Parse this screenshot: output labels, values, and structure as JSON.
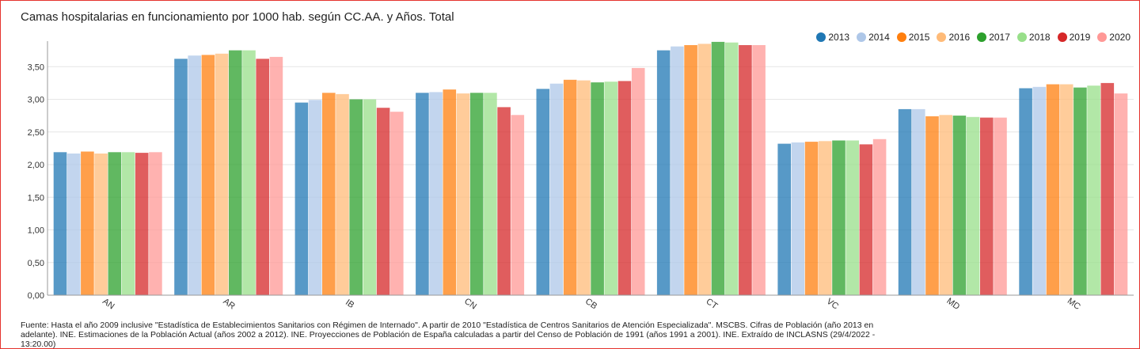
{
  "chart_data": {
    "type": "bar",
    "title": "Camas hospitalarias en funcionamiento por 1000 hab. según CC.AA. y Años. Total",
    "xlabel": "",
    "ylabel": "",
    "ylim": [
      0,
      3.9
    ],
    "yticks": [
      "0,00",
      "0,50",
      "1,00",
      "1,50",
      "2,00",
      "2,50",
      "3,00",
      "3,50"
    ],
    "ytick_values": [
      0,
      0.5,
      1.0,
      1.5,
      2.0,
      2.5,
      3.0,
      3.5
    ],
    "grid": true,
    "legend_position": "top-right",
    "categories": [
      "AN",
      "AR",
      "IB",
      "CN",
      "CB",
      "CT",
      "VC",
      "MD",
      "MC"
    ],
    "series": [
      {
        "name": "2013",
        "color": "#1f77b4",
        "values": [
          2.19,
          3.62,
          2.95,
          3.1,
          3.16,
          3.75,
          2.32,
          2.85,
          3.17
        ]
      },
      {
        "name": "2014",
        "color": "#aec7e8",
        "values": [
          2.17,
          3.67,
          2.99,
          3.11,
          3.24,
          3.81,
          2.34,
          2.85,
          3.19
        ]
      },
      {
        "name": "2015",
        "color": "#ff7f0e",
        "values": [
          2.2,
          3.68,
          3.1,
          3.15,
          3.3,
          3.83,
          2.35,
          2.74,
          3.23
        ]
      },
      {
        "name": "2016",
        "color": "#ffbb78",
        "values": [
          2.17,
          3.7,
          3.08,
          3.09,
          3.29,
          3.85,
          2.36,
          2.76,
          3.23
        ]
      },
      {
        "name": "2017",
        "color": "#2ca02c",
        "values": [
          2.19,
          3.75,
          3.0,
          3.1,
          3.26,
          3.88,
          2.37,
          2.75,
          3.18
        ]
      },
      {
        "name": "2018",
        "color": "#98df8a",
        "values": [
          2.19,
          3.75,
          3.0,
          3.1,
          3.27,
          3.87,
          2.37,
          2.73,
          3.21
        ]
      },
      {
        "name": "2019",
        "color": "#d62728",
        "values": [
          2.18,
          3.62,
          2.87,
          2.88,
          3.28,
          3.83,
          2.31,
          2.72,
          3.25
        ]
      },
      {
        "name": "2020",
        "color": "#ff9896",
        "values": [
          2.19,
          3.65,
          2.81,
          2.76,
          3.48,
          3.83,
          2.39,
          2.72,
          3.09
        ]
      }
    ]
  },
  "source": "Fuente: Hasta el año 2009 inclusive \"Estadística de Establecimientos Sanitarios con Régimen de Internado\". A partir de 2010 \"Estadística de Centros Sanitarios de Atención Especializada\". MSCBS. Cifras de Población (año 2013 en adelante). INE. Estimaciones de la Población Actual (años 2002 a 2012). INE. Proyecciones de Población de España calculadas a partir del Censo de Población de 1991 (años 1991 a 2001). INE. Extraído de INCLASNS (29/4/2022 - 13:20.00)",
  "frame_color": "#e5322d"
}
